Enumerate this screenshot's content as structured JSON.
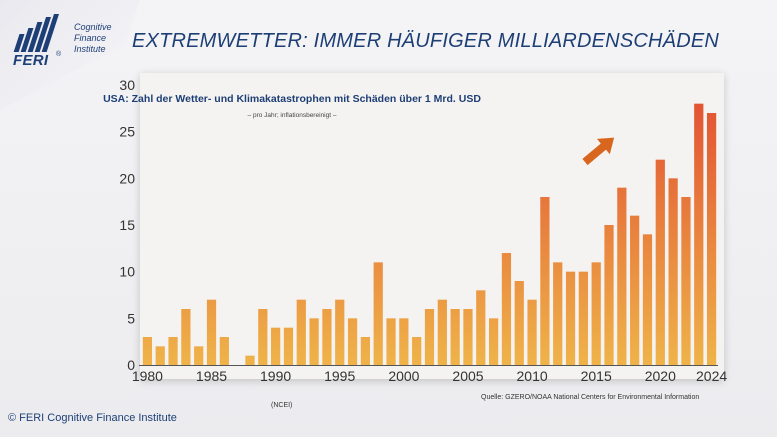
{
  "header": {
    "logo_text": "FERI",
    "logo_reg": "®",
    "logo_sub": [
      "Cognitive",
      "Finance",
      "Institute"
    ],
    "title": "EXTREMWETTER: IMMER HÄUFIGER MILLIARDENSCHÄDEN"
  },
  "footer": {
    "copyright": "© FERI Cognitive Finance Institute",
    "ncei": "(NCEI)",
    "source": "Quelle: GZERO/NOAA National Centers for Environmental Information"
  },
  "colors": {
    "bar_low": "#efb349",
    "bar_high": "#e25433",
    "arrow": "#d9661f",
    "title_blue": "#1d3f75"
  },
  "chart_data": {
    "type": "bar",
    "title": "USA: Zahl der Wetter- und Klimakatastrophen mit Schäden über 1 Mrd. USD",
    "subtitle": "– pro Jahr; inflationsbereinigt –",
    "xlabel": "",
    "ylabel": "",
    "ylim": [
      0,
      30
    ],
    "yticks": [
      0,
      5,
      10,
      15,
      20,
      25,
      30
    ],
    "xticks": [
      1980,
      1985,
      1990,
      1995,
      2000,
      2005,
      2010,
      2015,
      2020,
      2024
    ],
    "categories": [
      1980,
      1981,
      1982,
      1983,
      1984,
      1985,
      1986,
      1987,
      1988,
      1989,
      1990,
      1991,
      1992,
      1993,
      1994,
      1995,
      1996,
      1997,
      1998,
      1999,
      2000,
      2001,
      2002,
      2003,
      2004,
      2005,
      2006,
      2007,
      2008,
      2009,
      2010,
      2011,
      2012,
      2013,
      2014,
      2015,
      2016,
      2017,
      2018,
      2019,
      2020,
      2021,
      2022,
      2023,
      2024
    ],
    "values": [
      3,
      2,
      3,
      6,
      2,
      7,
      3,
      0,
      1,
      6,
      4,
      4,
      7,
      5,
      6,
      7,
      5,
      3,
      11,
      5,
      5,
      3,
      6,
      7,
      6,
      6,
      8,
      5,
      12,
      9,
      7,
      18,
      11,
      10,
      10,
      11,
      15,
      19,
      16,
      14,
      22,
      20,
      18,
      28,
      27
    ],
    "grid": false,
    "annotation": "upward-arrow"
  }
}
